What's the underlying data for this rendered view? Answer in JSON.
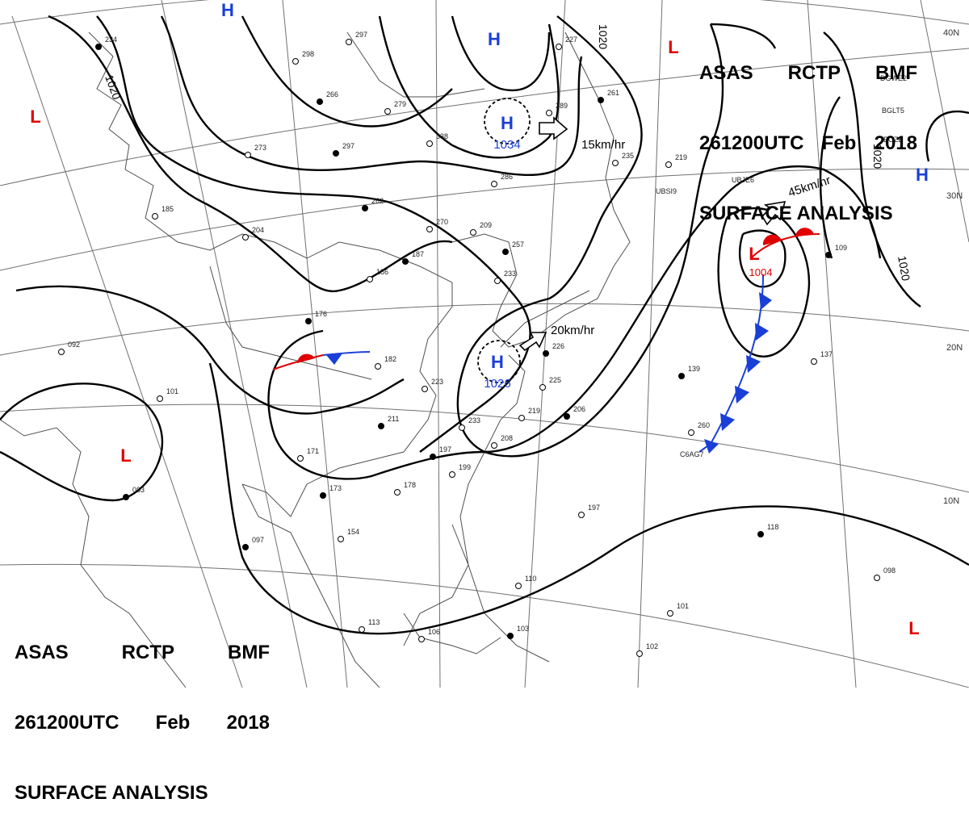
{
  "header_top": {
    "line1": [
      "ASAS",
      "RCTP",
      "BMF"
    ],
    "line2": [
      "261200UTC",
      "Feb",
      "2018"
    ],
    "line3": "SURFACE ANALYSIS"
  },
  "header_bottom": {
    "line1": [
      "ASAS",
      "RCTP",
      "BMF"
    ],
    "line2": [
      "261200UTC",
      "Feb",
      "2018"
    ],
    "line3": "SURFACE ANALYSIS"
  },
  "isobar_labels": [
    "1020",
    "1020",
    "1020",
    "1020"
  ],
  "high_labels": {
    "symbol": "H",
    "central_a": "1034",
    "central_b": "1026"
  },
  "low_labels": {
    "symbol": "L",
    "central": "1004"
  },
  "motion_labels": [
    "15km/hr",
    "20km/hr",
    "45km/hr"
  ],
  "latitude_labels": [
    "40N",
    "30N",
    "20N",
    "10N"
  ],
  "station_values": [
    "234",
    "298",
    "297",
    "266",
    "279",
    "273",
    "297",
    "338",
    "286",
    "262",
    "270",
    "209",
    "257",
    "233",
    "204",
    "187",
    "186",
    "185",
    "176",
    "182",
    "223",
    "211",
    "233",
    "208",
    "197",
    "199",
    "171",
    "173",
    "178",
    "154",
    "097",
    "092",
    "101",
    "083",
    "113",
    "106",
    "103",
    "102",
    "101",
    "226",
    "225",
    "219",
    "206",
    "235",
    "219",
    "261",
    "289",
    "227",
    "139",
    "260",
    "137",
    "118",
    "098",
    "197",
    "109",
    "110"
  ],
  "station_codes": [
    "UBSI9",
    "C6AG7",
    "DGWE2",
    "BGLT5",
    "BOZB",
    "UBJE6"
  ],
  "colors": {
    "high": "#1a3fd6",
    "low": "#e00000",
    "isobar": "#000000",
    "grid": "#707070",
    "coast": "#505050"
  }
}
